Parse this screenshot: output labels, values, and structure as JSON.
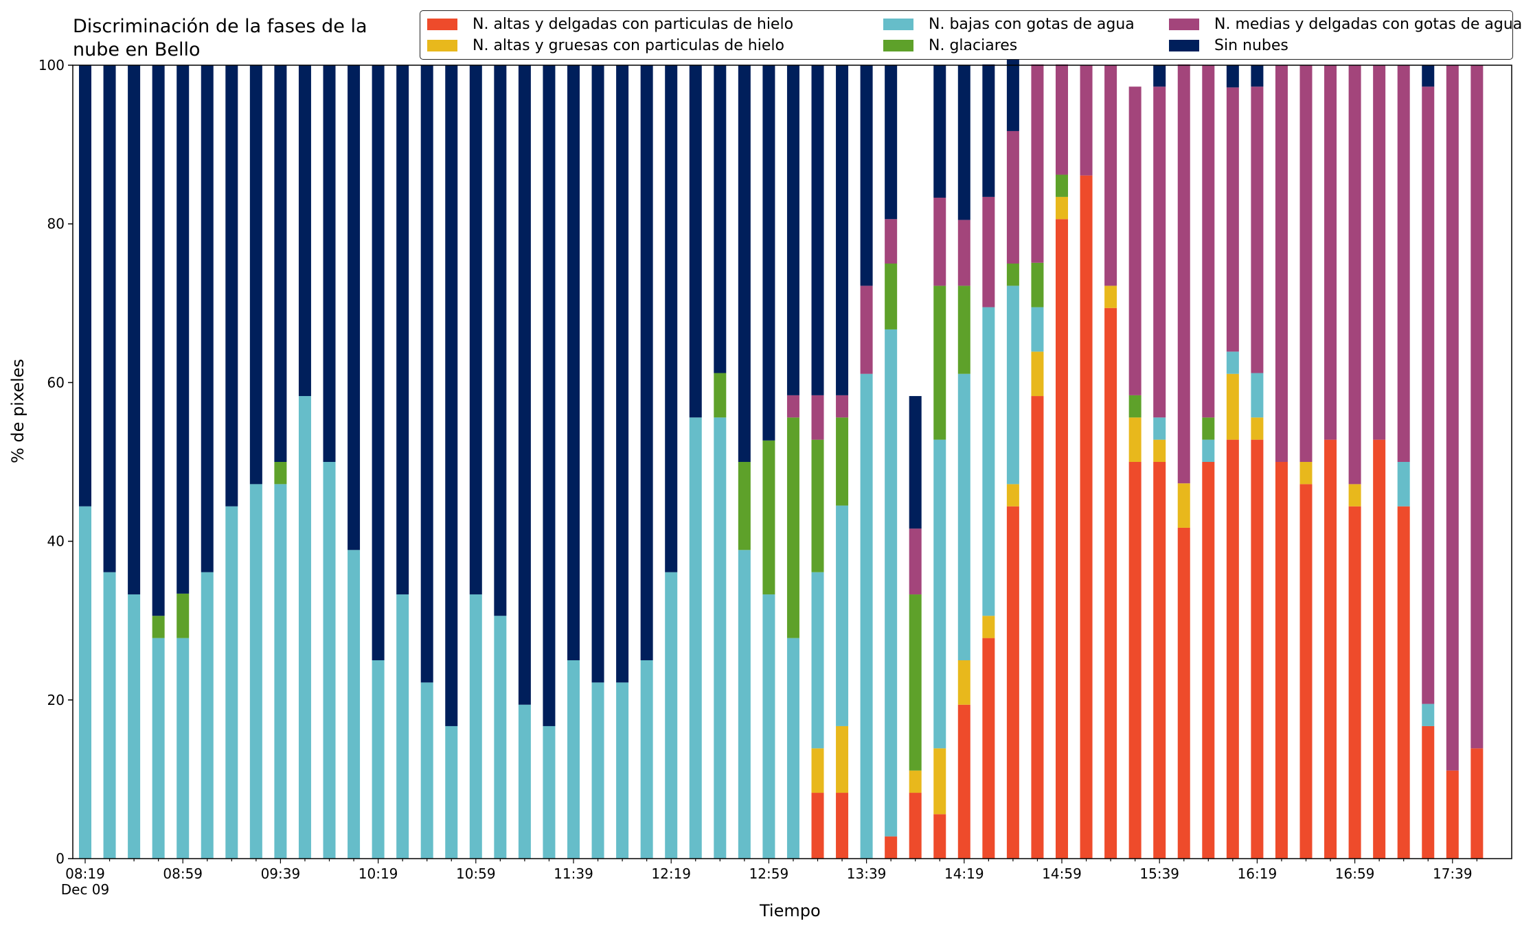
{
  "chart_data": {
    "type": "bar",
    "stacked": true,
    "title": "Discriminación de la fases de la\nnube en Bello",
    "xlabel": "Tiempo",
    "ylabel": "% de pixeles",
    "ylim": [
      0,
      100
    ],
    "yticks": [
      0,
      20,
      40,
      60,
      80,
      100
    ],
    "xtick_labels": [
      "08:19\nDec 09",
      "08:59",
      "09:39",
      "10:19",
      "10:59",
      "11:39",
      "12:19",
      "12:59",
      "13:39",
      "14:19",
      "14:59",
      "15:39",
      "16:19",
      "16:59",
      "17:39"
    ],
    "xtick_every": 4,
    "grid": false,
    "legend_position": "top-right",
    "categories": [
      "08:19",
      "08:29",
      "08:39",
      "08:49",
      "08:59",
      "09:09",
      "09:19",
      "09:29",
      "09:39",
      "09:49",
      "09:59",
      "10:09",
      "10:19",
      "10:29",
      "10:39",
      "10:49",
      "10:59",
      "11:09",
      "11:19",
      "11:29",
      "11:39",
      "11:49",
      "11:59",
      "12:09",
      "12:19",
      "12:29",
      "12:39",
      "12:49",
      "12:59",
      "13:09",
      "13:19",
      "13:29",
      "13:39",
      "13:49",
      "13:59",
      "14:09",
      "14:19",
      "14:29",
      "14:39",
      "14:49",
      "14:59",
      "15:09",
      "15:19",
      "15:29",
      "15:39",
      "15:49",
      "15:59",
      "16:09",
      "16:19",
      "16:29",
      "16:39",
      "16:49",
      "16:59",
      "17:09",
      "17:19",
      "17:29",
      "17:39",
      "17:49"
    ],
    "series": [
      {
        "name": "N. altas y delgadas con particulas de hielo",
        "color": "#ee4b2b",
        "values": [
          0,
          0,
          0,
          0,
          0,
          0,
          0,
          0,
          0,
          0,
          0,
          0,
          0,
          0,
          0,
          0,
          0,
          0,
          0,
          0,
          0,
          0,
          0,
          0,
          0,
          0,
          0,
          0,
          0,
          0,
          8.3,
          8.3,
          0,
          2.8,
          8.3,
          5.6,
          19.4,
          27.8,
          44.4,
          58.3,
          80.6,
          86.1,
          69.4,
          50,
          50,
          41.7,
          50,
          52.8,
          52.8,
          50,
          47.2,
          52.8,
          44.4,
          52.8,
          44.4,
          16.7,
          11.1,
          13.9
        ]
      },
      {
        "name": "N. altas y gruesas con particulas de hielo",
        "color": "#e8b81c",
        "values": [
          0,
          0,
          0,
          0,
          0,
          0,
          0,
          0,
          0,
          0,
          0,
          0,
          0,
          0,
          0,
          0,
          0,
          0,
          0,
          0,
          0,
          0,
          0,
          0,
          0,
          0,
          0,
          0,
          0,
          0,
          5.6,
          8.4,
          0,
          0,
          2.8,
          8.3,
          5.6,
          2.8,
          2.8,
          5.6,
          2.8,
          0,
          2.8,
          5.6,
          2.8,
          5.6,
          0,
          8.3,
          2.8,
          0,
          2.8,
          0,
          2.8,
          0,
          0,
          0,
          0,
          0
        ]
      },
      {
        "name": "N. bajas con gotas de agua",
        "color": "#66bdc9",
        "values": [
          44.4,
          36.1,
          33.3,
          27.8,
          27.8,
          36.1,
          44.4,
          47.2,
          47.2,
          58.3,
          50,
          38.9,
          25,
          33.3,
          22.2,
          16.7,
          33.3,
          30.6,
          19.4,
          16.7,
          25,
          22.2,
          22.2,
          25,
          36.1,
          55.6,
          55.6,
          38.9,
          33.3,
          27.8,
          22.2,
          27.8,
          61.1,
          63.9,
          0,
          38.9,
          36.1,
          38.9,
          25,
          5.6,
          0,
          0,
          0,
          0,
          2.8,
          0,
          2.8,
          2.8,
          5.6,
          0,
          0,
          0,
          0,
          0,
          5.6,
          2.8,
          0,
          0
        ]
      },
      {
        "name": "N. glaciares",
        "color": "#5ea12a",
        "values": [
          0,
          0,
          0,
          2.8,
          5.6,
          0,
          0,
          0,
          2.8,
          0,
          0,
          0,
          0,
          0,
          0,
          0,
          0,
          0,
          0,
          0,
          0,
          0,
          0,
          0,
          0,
          0,
          5.6,
          11.1,
          19.4,
          27.8,
          16.7,
          11.1,
          0,
          8.3,
          22.2,
          19.4,
          11.1,
          0,
          2.8,
          5.6,
          2.8,
          0,
          0,
          2.8,
          0,
          0,
          2.8,
          0,
          0,
          0,
          0,
          0,
          0,
          0,
          0,
          0,
          0,
          0
        ]
      },
      {
        "name": "N. medias y delgadas con gotas de agua",
        "color": "#a3457b",
        "values": [
          0,
          0,
          0,
          0,
          0,
          0,
          0,
          0,
          0,
          0,
          0,
          0,
          0,
          0,
          0,
          0,
          0,
          0,
          0,
          0,
          0,
          0,
          0,
          0,
          0,
          0,
          0,
          0,
          0,
          2.8,
          5.6,
          2.8,
          11.1,
          5.6,
          8.3,
          11.1,
          8.3,
          13.9,
          16.7,
          25,
          13.9,
          13.9,
          27.8,
          38.9,
          41.7,
          52.8,
          44.4,
          33.3,
          36.1,
          50,
          50,
          47.2,
          52.8,
          47.2,
          50,
          77.8,
          88.9,
          86.1
        ]
      },
      {
        "name": "Sin nubes",
        "color": "#001f5b",
        "values": [
          55.6,
          63.9,
          66.7,
          69.4,
          66.6,
          63.9,
          55.6,
          52.8,
          50,
          41.7,
          50,
          61.1,
          75,
          66.7,
          77.8,
          83.3,
          66.7,
          69.4,
          80.6,
          83.3,
          75,
          77.8,
          77.8,
          75,
          63.9,
          44.4,
          38.8,
          50,
          47.3,
          41.6,
          41.6,
          41.6,
          27.8,
          19.4,
          16.7,
          16.7,
          19.5,
          16.7,
          11.1,
          0,
          0,
          0,
          0,
          0,
          2.7,
          0,
          0,
          2.8,
          2.7,
          0,
          0,
          0,
          0,
          0,
          0,
          2.7,
          0,
          0
        ]
      }
    ]
  }
}
